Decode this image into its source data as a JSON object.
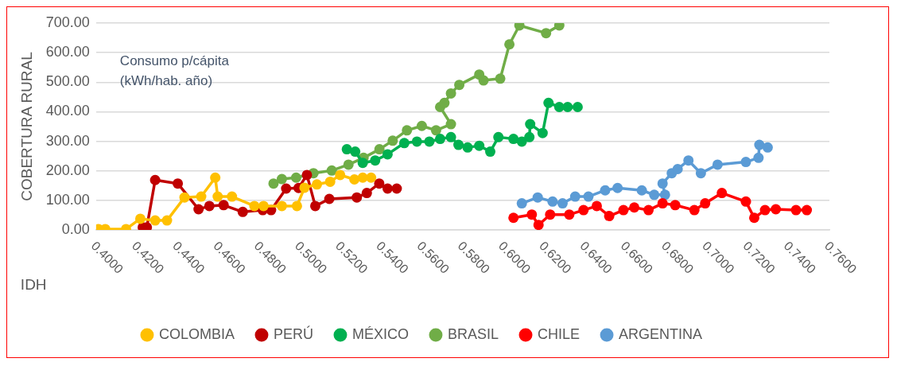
{
  "chart_data": {
    "type": "line",
    "xlabel": "IDH",
    "ylabel": "COBERTURA RURAL",
    "annotations": [
      "Consumo p/cápita\n(kWh/hab. año)"
    ],
    "xlim": [
      0.4,
      0.76
    ],
    "xticks": [
      {
        "value": 0.4,
        "label": "0.4000"
      },
      {
        "value": 0.42,
        "label": "0.4200"
      },
      {
        "value": 0.44,
        "label": "0.4400"
      },
      {
        "value": 0.46,
        "label": "0.4600"
      },
      {
        "value": 0.48,
        "label": "0.4800"
      },
      {
        "value": 0.5,
        "label": "0.5000"
      },
      {
        "value": 0.52,
        "label": "0.5200"
      },
      {
        "value": 0.54,
        "label": "0.5400"
      },
      {
        "value": 0.56,
        "label": "0.5600"
      },
      {
        "value": 0.58,
        "label": "0.5800"
      },
      {
        "value": 0.6,
        "label": "0.6000"
      },
      {
        "value": 0.62,
        "label": "0.6200"
      },
      {
        "value": 0.64,
        "label": "0.6400"
      },
      {
        "value": 0.66,
        "label": "0.6600"
      },
      {
        "value": 0.68,
        "label": "0.6800"
      },
      {
        "value": 0.7,
        "label": "0.7000"
      },
      {
        "value": 0.72,
        "label": "0.7200"
      },
      {
        "value": 0.74,
        "label": "0.7400"
      },
      {
        "value": 0.76,
        "label": "0.7600"
      }
    ],
    "ylim": [
      0,
      700
    ],
    "yticks": [
      {
        "value": 0,
        "label": "0.00"
      },
      {
        "value": 100,
        "label": "100.00"
      },
      {
        "value": 200,
        "label": "200.00"
      },
      {
        "value": 300,
        "label": "300.00"
      },
      {
        "value": 400,
        "label": "400.00"
      },
      {
        "value": 500,
        "label": "500.00"
      },
      {
        "value": 600,
        "label": "600.00"
      },
      {
        "value": 700,
        "label": "700.00"
      }
    ],
    "grid": "y",
    "legend": "bottom",
    "marker": "circle",
    "line_style": "solid",
    "series": [
      {
        "name": "COLOMBIA",
        "color": "#ffc000",
        "x": [
          0.4012,
          0.4045,
          0.4147,
          0.4217,
          0.429,
          0.4348,
          0.4434,
          0.4516,
          0.4585,
          0.4597,
          0.4667,
          0.4777,
          0.4822,
          0.4912,
          0.4986,
          0.5023,
          0.5084,
          0.5149,
          0.5198,
          0.5268,
          0.5309,
          0.535
        ],
        "values": [
          3,
          3,
          3,
          38,
          32,
          32,
          110,
          113,
          177,
          113,
          113,
          81,
          81,
          81,
          81,
          143,
          154,
          163,
          186,
          171,
          177,
          177
        ]
      },
      {
        "name": "PERÚ",
        "color": "#c00000",
        "x": [
          0.4229,
          0.4249,
          0.429,
          0.4401,
          0.4503,
          0.4556,
          0.4626,
          0.472,
          0.4818,
          0.4859,
          0.4933,
          0.4994,
          0.5035,
          0.5076,
          0.5145,
          0.528,
          0.5329,
          0.539,
          0.5431,
          0.5476
        ],
        "values": [
          9,
          9,
          169,
          157,
          70,
          81,
          84,
          61,
          67,
          67,
          140,
          142,
          186,
          81,
          105,
          110,
          125,
          157,
          140,
          140
        ]
      },
      {
        "name": "MÉXICO",
        "color": "#00b050",
        "x": [
          0.5231,
          0.5272,
          0.5309,
          0.537,
          0.5431,
          0.5513,
          0.5575,
          0.5636,
          0.5689,
          0.5742,
          0.5779,
          0.5824,
          0.5881,
          0.5935,
          0.5975,
          0.6049,
          0.609,
          0.6127,
          0.6131,
          0.6192,
          0.6221,
          0.6274,
          0.6315,
          0.6364
        ],
        "values": [
          273,
          265,
          227,
          235,
          256,
          294,
          299,
          299,
          308,
          314,
          288,
          279,
          285,
          265,
          314,
          308,
          299,
          314,
          358,
          328,
          430,
          416,
          416,
          416
        ]
      },
      {
        "name": "BRASIL",
        "color": "#70ad47",
        "x": [
          0.4871,
          0.4912,
          0.4982,
          0.5067,
          0.5157,
          0.5239,
          0.5313,
          0.5391,
          0.5456,
          0.5526,
          0.5599,
          0.5669,
          0.5742,
          0.5689,
          0.571,
          0.5742,
          0.5783,
          0.5881,
          0.5902,
          0.5984,
          0.6029,
          0.6078,
          0.6209,
          0.6274
        ],
        "values": [
          157,
          172,
          177,
          192,
          201,
          221,
          244,
          273,
          302,
          337,
          352,
          337,
          358,
          416,
          430,
          462,
          491,
          526,
          506,
          512,
          628,
          692,
          666,
          692
        ]
      },
      {
        "name": "CHILE",
        "color": "#ff0000",
        "x": [
          0.6049,
          0.6139,
          0.6172,
          0.6229,
          0.6323,
          0.6393,
          0.6458,
          0.6519,
          0.6589,
          0.6642,
          0.6712,
          0.6781,
          0.6843,
          0.6937,
          0.699,
          0.7072,
          0.719,
          0.7231,
          0.7284,
          0.7337,
          0.7436,
          0.7489
        ],
        "values": [
          41,
          52,
          17,
          52,
          52,
          67,
          81,
          47,
          67,
          76,
          67,
          90,
          84,
          67,
          90,
          125,
          96,
          41,
          67,
          70,
          67,
          67
        ]
      },
      {
        "name": "ARGENTINA",
        "color": "#5b9bd5",
        "x": [
          0.609,
          0.6168,
          0.6241,
          0.629,
          0.6352,
          0.6417,
          0.6499,
          0.656,
          0.6679,
          0.674,
          0.6793,
          0.6781,
          0.6826,
          0.6855,
          0.6908,
          0.6969,
          0.7051,
          0.719,
          0.7252,
          0.7256,
          0.7297
        ],
        "values": [
          90,
          110,
          96,
          90,
          113,
          113,
          134,
          142,
          134,
          119,
          119,
          157,
          192,
          206,
          235,
          192,
          221,
          230,
          244,
          288,
          279
        ]
      }
    ]
  }
}
